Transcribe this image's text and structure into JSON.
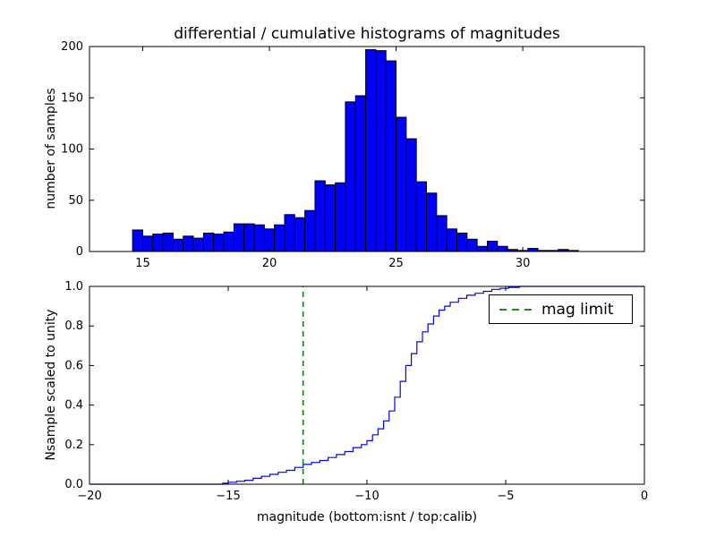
{
  "figure": {
    "background": "#ffffff"
  },
  "chart_data": [
    {
      "type": "bar",
      "role": "differential-histogram-top",
      "title": "differential / cumulative histograms of magnitudes",
      "ylabel": "number of samples",
      "xlabel": "",
      "xlim": [
        12.9,
        34.8
      ],
      "ylim": [
        0,
        200
      ],
      "xticks": [
        15,
        20,
        25,
        30
      ],
      "xtick_labels": [
        "15",
        "20",
        "25",
        "30"
      ],
      "yticks": [
        0,
        50,
        100,
        150,
        200
      ],
      "ytick_labels": [
        "0",
        "50",
        "100",
        "150",
        "200"
      ],
      "bar_color": "#0000ff",
      "bar_edge_color": "#000000",
      "bin_start": 14.6,
      "bin_width": 0.4,
      "values": [
        21,
        15,
        17,
        18,
        12,
        15,
        13,
        18,
        17,
        19,
        27,
        27,
        26,
        22,
        26,
        36,
        33,
        40,
        69,
        65,
        67,
        146,
        152,
        197,
        196,
        186,
        131,
        110,
        68,
        57,
        35,
        22,
        18,
        12,
        5,
        10,
        5,
        2,
        1,
        3,
        1,
        1,
        2,
        1
      ],
      "grid": false
    },
    {
      "type": "line",
      "role": "cumulative-histogram-bottom",
      "ylabel": "Nsample scaled to unity",
      "xlabel": "magnitude (bottom:isnt / top:calib)",
      "xlim": [
        -20,
        0
      ],
      "ylim": [
        0.0,
        1.0
      ],
      "xticks": [
        -20,
        -15,
        -10,
        -5,
        0
      ],
      "xtick_labels": [
        "−20",
        "−15",
        "−10",
        "−5",
        "0"
      ],
      "yticks": [
        0.0,
        0.2,
        0.4,
        0.6,
        0.8,
        1.0
      ],
      "ytick_labels": [
        "0.0",
        "0.2",
        "0.4",
        "0.6",
        "0.8",
        "1.0"
      ],
      "line_color": "#0000ff",
      "steps": [
        [
          -20,
          0
        ],
        [
          -15.4,
          0
        ],
        [
          -15.2,
          0.005
        ],
        [
          -15.0,
          0.01
        ],
        [
          -14.7,
          0.015
        ],
        [
          -14.4,
          0.02
        ],
        [
          -14.1,
          0.03
        ],
        [
          -13.8,
          0.04
        ],
        [
          -13.5,
          0.05
        ],
        [
          -13.2,
          0.06
        ],
        [
          -12.9,
          0.07
        ],
        [
          -12.6,
          0.085
        ],
        [
          -12.3,
          0.1
        ],
        [
          -12.0,
          0.11
        ],
        [
          -11.7,
          0.12
        ],
        [
          -11.4,
          0.135
        ],
        [
          -11.1,
          0.15
        ],
        [
          -10.8,
          0.165
        ],
        [
          -10.5,
          0.185
        ],
        [
          -10.2,
          0.2
        ],
        [
          -10.0,
          0.22
        ],
        [
          -9.8,
          0.25
        ],
        [
          -9.6,
          0.28
        ],
        [
          -9.4,
          0.32
        ],
        [
          -9.2,
          0.37
        ],
        [
          -9.0,
          0.44
        ],
        [
          -8.8,
          0.52
        ],
        [
          -8.6,
          0.6
        ],
        [
          -8.4,
          0.66
        ],
        [
          -8.2,
          0.72
        ],
        [
          -8.0,
          0.77
        ],
        [
          -7.8,
          0.81
        ],
        [
          -7.6,
          0.85
        ],
        [
          -7.4,
          0.88
        ],
        [
          -7.2,
          0.9
        ],
        [
          -7.0,
          0.92
        ],
        [
          -6.7,
          0.94
        ],
        [
          -6.4,
          0.955
        ],
        [
          -6.1,
          0.965
        ],
        [
          -5.8,
          0.975
        ],
        [
          -5.5,
          0.985
        ],
        [
          -5.2,
          0.99
        ],
        [
          -4.9,
          0.995
        ],
        [
          -4.5,
          1.0
        ],
        [
          0,
          1.0
        ]
      ],
      "mag_limit": {
        "x": -12.3,
        "color": "#008000",
        "style": "dashed"
      },
      "legend": {
        "position": "upper right",
        "entries": [
          {
            "label": "mag limit",
            "color": "#008000",
            "dash": true
          }
        ]
      },
      "grid": false
    }
  ]
}
